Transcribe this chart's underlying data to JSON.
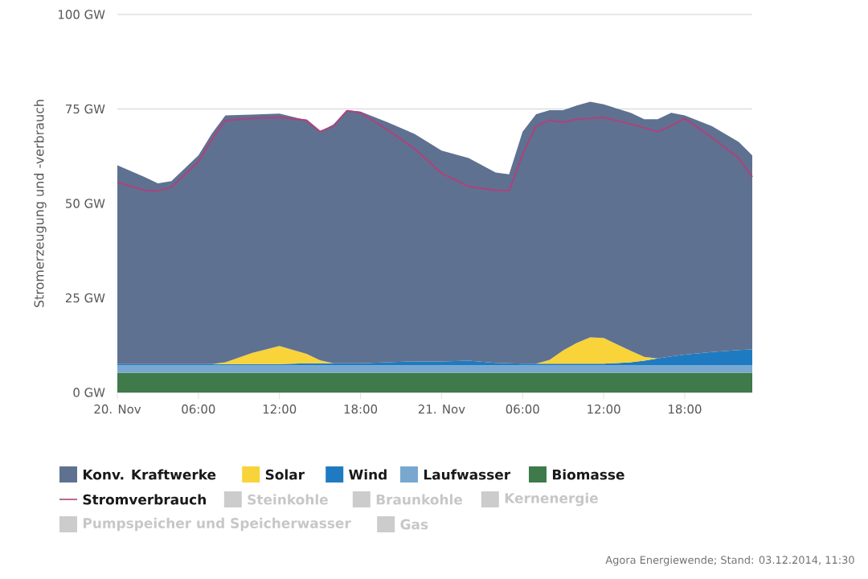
{
  "chart_data": {
    "type": "area",
    "stacked": true,
    "ylabel": "Stromerzeugung und -verbrauch",
    "x": [
      "2014-11-20T00:00",
      "2014-11-20T02:00",
      "2014-11-20T03:00",
      "2014-11-20T04:00",
      "2014-11-20T06:00",
      "2014-11-20T07:00",
      "2014-11-20T08:00",
      "2014-11-20T10:00",
      "2014-11-20T12:00",
      "2014-11-20T14:00",
      "2014-11-20T15:00",
      "2014-11-20T16:00",
      "2014-11-20T17:00",
      "2014-11-20T18:00",
      "2014-11-20T20:00",
      "2014-11-20T22:00",
      "2014-11-21T00:00",
      "2014-11-21T02:00",
      "2014-11-21T04:00",
      "2014-11-21T05:00",
      "2014-11-21T06:00",
      "2014-11-21T07:00",
      "2014-11-21T08:00",
      "2014-11-21T09:00",
      "2014-11-21T10:00",
      "2014-11-21T11:00",
      "2014-11-21T12:00",
      "2014-11-21T14:00",
      "2014-11-21T15:00",
      "2014-11-21T16:00",
      "2014-11-21T17:00",
      "2014-11-21T18:00",
      "2014-11-21T20:00",
      "2014-11-21T22:00",
      "2014-11-21T23:00"
    ],
    "xlim": [
      "2014-11-20T00:00",
      "2014-11-21T23:00"
    ],
    "xticks": [
      {
        "value": "2014-11-20T00:00",
        "label": "20. Nov"
      },
      {
        "value": "2014-11-20T06:00",
        "label": "06:00"
      },
      {
        "value": "2014-11-20T12:00",
        "label": "12:00"
      },
      {
        "value": "2014-11-20T18:00",
        "label": "18:00"
      },
      {
        "value": "2014-11-21T00:00",
        "label": "21. Nov"
      },
      {
        "value": "2014-11-21T06:00",
        "label": "06:00"
      },
      {
        "value": "2014-11-21T12:00",
        "label": "12:00"
      },
      {
        "value": "2014-11-21T18:00",
        "label": "18:00"
      }
    ],
    "ylim": [
      0,
      100
    ],
    "yticks": [
      {
        "value": 0,
        "label": "0 GW"
      },
      {
        "value": 25,
        "label": "25 GW"
      },
      {
        "value": 50,
        "label": "50 GW"
      },
      {
        "value": 75,
        "label": "75 GW"
      },
      {
        "value": 100,
        "label": "100 GW"
      }
    ],
    "grid": "y",
    "legend": "bottom",
    "series": [
      {
        "name": "Biomasse",
        "type": "area",
        "color": "#3e7a4a",
        "values": [
          5.2,
          5.2,
          5.2,
          5.2,
          5.2,
          5.2,
          5.2,
          5.2,
          5.2,
          5.2,
          5.2,
          5.2,
          5.2,
          5.2,
          5.2,
          5.2,
          5.2,
          5.2,
          5.2,
          5.2,
          5.2,
          5.2,
          5.2,
          5.2,
          5.2,
          5.2,
          5.2,
          5.2,
          5.2,
          5.2,
          5.2,
          5.2,
          5.2,
          5.2,
          5.2
        ]
      },
      {
        "name": "Laufwasser",
        "type": "area",
        "color": "#78a8cf",
        "values": [
          2,
          2,
          2,
          2,
          2,
          2,
          2,
          2,
          2,
          2,
          2,
          2,
          2,
          2,
          2,
          2,
          2,
          2,
          2,
          2,
          2,
          2,
          2,
          2,
          2,
          2,
          2,
          2,
          2,
          2,
          2,
          2,
          2,
          2,
          2
        ]
      },
      {
        "name": "Wind",
        "type": "area",
        "color": "#1f7bc1",
        "values": [
          0.3,
          0.3,
          0.3,
          0.3,
          0.3,
          0.3,
          0.3,
          0.3,
          0.3,
          0.5,
          0.5,
          0.5,
          0.5,
          0.5,
          0.8,
          1.0,
          1.0,
          1.2,
          0.6,
          0.5,
          0.4,
          0.4,
          0.4,
          0.4,
          0.4,
          0.4,
          0.4,
          0.8,
          1.2,
          1.8,
          2.3,
          2.8,
          3.5,
          4.0,
          4.2
        ]
      },
      {
        "name": "Solar",
        "type": "area",
        "color": "#f8d33a",
        "values": [
          0,
          0,
          0,
          0,
          0,
          0,
          0.5,
          3.0,
          4.8,
          2.5,
          0.8,
          0,
          0,
          0,
          0,
          0,
          0,
          0,
          0,
          0,
          0,
          0,
          1.0,
          3.5,
          5.5,
          7.0,
          6.8,
          3.0,
          1.0,
          0,
          0,
          0,
          0,
          0,
          0
        ]
      },
      {
        "name": "Konv. Kraftwerke",
        "type": "area",
        "color": "#5f7191",
        "values": [
          52.6,
          49.5,
          47.8,
          48.4,
          55.2,
          61.0,
          65.3,
          63.0,
          61.5,
          61.8,
          60.5,
          63.2,
          67.0,
          66.6,
          63.5,
          60.2,
          55.8,
          53.6,
          50.4,
          50.0,
          61.4,
          66.0,
          66.1,
          63.6,
          62.8,
          62.3,
          61.8,
          63.0,
          62.9,
          63.3,
          64.5,
          63.3,
          59.8,
          55.1,
          51.3
        ]
      },
      {
        "name": "Stromverbrauch",
        "type": "line",
        "color": "#a8457e",
        "values": [
          55.6,
          53.5,
          53.3,
          54.3,
          61,
          67,
          72,
          72.5,
          72.8,
          72,
          69,
          70.5,
          74.5,
          74,
          69.5,
          64.5,
          58,
          54.5,
          53.5,
          53.4,
          63,
          70.5,
          72,
          71.5,
          72.3,
          72.5,
          72.8,
          71,
          70,
          69,
          70.5,
          72.5,
          67.5,
          62,
          57
        ]
      },
      {
        "name": "Steinkohle",
        "type": "area",
        "color": "#cccccc",
        "values": [
          null,
          null,
          null,
          null,
          null,
          null,
          null,
          null,
          null,
          null,
          null,
          null,
          null,
          null,
          null,
          null,
          null,
          null,
          null,
          null,
          null,
          null,
          null,
          null,
          null,
          null,
          null,
          null,
          null,
          null,
          null,
          null,
          null,
          null,
          null
        ]
      },
      {
        "name": "Braunkohle",
        "type": "area",
        "color": "#cccccc",
        "values": [
          null,
          null,
          null,
          null,
          null,
          null,
          null,
          null,
          null,
          null,
          null,
          null,
          null,
          null,
          null,
          null,
          null,
          null,
          null,
          null,
          null,
          null,
          null,
          null,
          null,
          null,
          null,
          null,
          null,
          null,
          null,
          null,
          null,
          null,
          null
        ]
      },
      {
        "name": "Kernenergie",
        "type": "area",
        "color": "#cccccc",
        "values": [
          null,
          null,
          null,
          null,
          null,
          null,
          null,
          null,
          null,
          null,
          null,
          null,
          null,
          null,
          null,
          null,
          null,
          null,
          null,
          null,
          null,
          null,
          null,
          null,
          null,
          null,
          null,
          null,
          null,
          null,
          null,
          null,
          null,
          null,
          null
        ]
      },
      {
        "name": "Pumpspeicher und Speicherwasser",
        "type": "area",
        "color": "#cccccc",
        "values": [
          null,
          null,
          null,
          null,
          null,
          null,
          null,
          null,
          null,
          null,
          null,
          null,
          null,
          null,
          null,
          null,
          null,
          null,
          null,
          null,
          null,
          null,
          null,
          null,
          null,
          null,
          null,
          null,
          null,
          null,
          null,
          null,
          null,
          null,
          null
        ]
      },
      {
        "name": "Gas",
        "type": "area",
        "color": "#cccccc",
        "values": [
          null,
          null,
          null,
          null,
          null,
          null,
          null,
          null,
          null,
          null,
          null,
          null,
          null,
          null,
          null,
          null,
          null,
          null,
          null,
          null,
          null,
          null,
          null,
          null,
          null,
          null,
          null,
          null,
          null,
          null,
          null,
          null,
          null,
          null,
          null
        ]
      }
    ],
    "annotations": [
      "Agora Energiewende; Stand: 03.12.2014, 11:30"
    ]
  }
}
